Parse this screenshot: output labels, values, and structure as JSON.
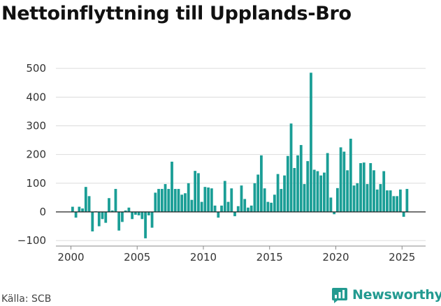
{
  "title": "Nettoinflyttning till Upplands-Bro",
  "source": "Källa: SCB",
  "brand": {
    "name": "Newsworthy",
    "icon": "newsworthy-logo-icon",
    "color": "#229a90"
  },
  "chart_data": {
    "type": "bar",
    "frequency": "quarterly",
    "start": "2000 Q1",
    "bar_color": "#1a9e96",
    "ylim": [
      -100,
      500
    ],
    "yticks": [
      -100,
      0,
      100,
      200,
      300,
      400,
      500
    ],
    "ytick_labels": [
      "−100",
      "0",
      "100",
      "200",
      "300",
      "400",
      "500"
    ],
    "xticks": [
      2000,
      2005,
      2010,
      2015,
      2020,
      2025
    ],
    "grid": true,
    "values": [
      18,
      -20,
      18,
      12,
      87,
      55,
      -68,
      2,
      -50,
      -25,
      -38,
      48,
      5,
      80,
      -65,
      -35,
      5,
      15,
      -25,
      -10,
      -12,
      -25,
      -92,
      -12,
      -55,
      67,
      80,
      80,
      97,
      80,
      175,
      80,
      80,
      60,
      65,
      100,
      42,
      143,
      135,
      35,
      87,
      85,
      82,
      22,
      -20,
      22,
      108,
      35,
      82,
      -15,
      20,
      92,
      45,
      15,
      22,
      100,
      130,
      197,
      82,
      35,
      32,
      60,
      132,
      80,
      127,
      195,
      308,
      153,
      197,
      233,
      97,
      177,
      485,
      147,
      142,
      127,
      137,
      205,
      50,
      -8,
      83,
      225,
      210,
      145,
      255,
      92,
      100,
      170,
      172,
      97,
      170,
      145,
      78,
      97,
      142,
      75,
      75,
      55,
      55,
      78,
      -17,
      80
    ]
  }
}
